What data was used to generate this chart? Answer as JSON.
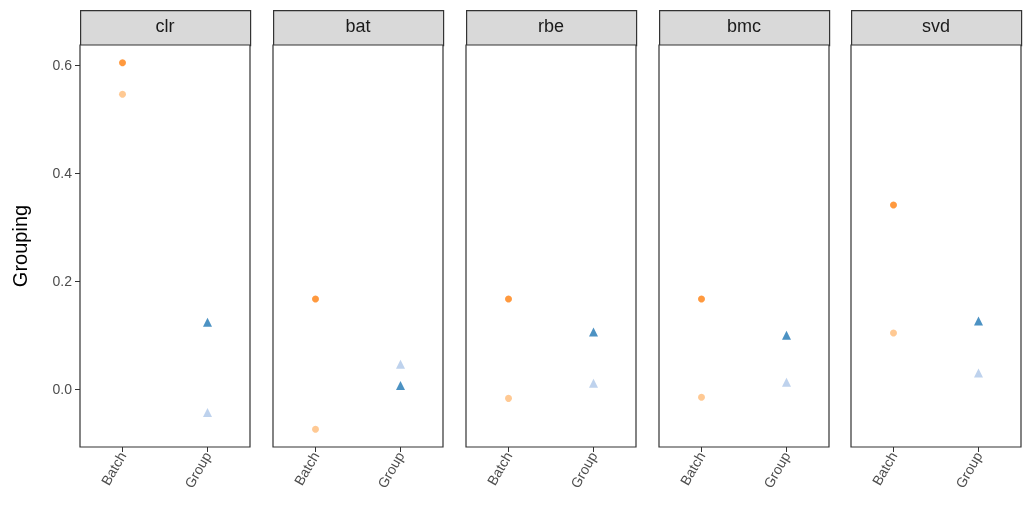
{
  "chart_data": [
    {
      "type": "scatter",
      "title": "clr",
      "ylabel": "Grouping",
      "categories": [
        "Batch",
        "Group"
      ],
      "ylim": [
        -0.107,
        0.637
      ],
      "yticks": [
        {
          "value": 0,
          "label": "0.0"
        },
        {
          "value": 0.2,
          "label": "0.2"
        },
        {
          "value": 0.4,
          "label": "0.4"
        },
        {
          "value": 0.6,
          "label": "0.6"
        }
      ],
      "grid": false,
      "series": [
        {
          "color": "#ff7f0e",
          "marker": "circle",
          "x": [
            "Batch"
          ],
          "values": [
            0.604
          ]
        },
        {
          "color": "#ffbb78",
          "marker": "circle",
          "x": [
            "Batch"
          ],
          "values": [
            0.546
          ]
        },
        {
          "color": "#1f77b4",
          "marker": "triangle",
          "x": [
            "Group"
          ],
          "values": [
            0.124
          ]
        },
        {
          "color": "#aec7e8",
          "marker": "triangle",
          "x": [
            "Group"
          ],
          "values": [
            -0.043
          ]
        }
      ]
    },
    {
      "type": "scatter",
      "title": "bat",
      "categories": [
        "Batch",
        "Group"
      ],
      "ylim": [
        -0.107,
        0.637
      ],
      "tick_labels": "x",
      "grid": false,
      "series": [
        {
          "color": "#ff7f0e",
          "marker": "circle",
          "x": [
            "Batch"
          ],
          "values": [
            0.167
          ]
        },
        {
          "color": "#ffbb78",
          "marker": "circle",
          "x": [
            "Batch"
          ],
          "values": [
            -0.074
          ]
        },
        {
          "color": "#1f77b4",
          "marker": "triangle",
          "x": [
            "Group"
          ],
          "values": [
            0.007
          ]
        },
        {
          "color": "#aec7e8",
          "marker": "triangle",
          "x": [
            "Group"
          ],
          "values": [
            0.046
          ]
        }
      ]
    },
    {
      "type": "scatter",
      "title": "rbe",
      "categories": [
        "Batch",
        "Group"
      ],
      "ylim": [
        -0.107,
        0.637
      ],
      "tick_labels": "x",
      "grid": false,
      "series": [
        {
          "color": "#ff7f0e",
          "marker": "circle",
          "x": [
            "Batch"
          ],
          "values": [
            0.167
          ]
        },
        {
          "color": "#ffbb78",
          "marker": "circle",
          "x": [
            "Batch"
          ],
          "values": [
            -0.017
          ]
        },
        {
          "color": "#1f77b4",
          "marker": "triangle",
          "x": [
            "Group"
          ],
          "values": [
            0.106
          ]
        },
        {
          "color": "#aec7e8",
          "marker": "triangle",
          "x": [
            "Group"
          ],
          "values": [
            0.011
          ]
        }
      ]
    },
    {
      "type": "scatter",
      "title": "bmc",
      "categories": [
        "Batch",
        "Group"
      ],
      "ylim": [
        -0.107,
        0.637
      ],
      "tick_labels": "x",
      "grid": false,
      "series": [
        {
          "color": "#ff7f0e",
          "marker": "circle",
          "x": [
            "Batch"
          ],
          "values": [
            0.167
          ]
        },
        {
          "color": "#ffbb78",
          "marker": "circle",
          "x": [
            "Batch"
          ],
          "values": [
            -0.015
          ]
        },
        {
          "color": "#1f77b4",
          "marker": "triangle",
          "x": [
            "Group"
          ],
          "values": [
            0.1
          ]
        },
        {
          "color": "#aec7e8",
          "marker": "triangle",
          "x": [
            "Group"
          ],
          "values": [
            0.013
          ]
        }
      ]
    },
    {
      "type": "scatter",
      "title": "svd",
      "categories": [
        "Batch",
        "Group"
      ],
      "ylim": [
        -0.107,
        0.637
      ],
      "tick_labels": "x",
      "grid": false,
      "series": [
        {
          "color": "#ff7f0e",
          "marker": "circle",
          "x": [
            "Batch"
          ],
          "values": [
            0.341
          ]
        },
        {
          "color": "#ffbb78",
          "marker": "circle",
          "x": [
            "Batch"
          ],
          "values": [
            0.104
          ]
        },
        {
          "color": "#1f77b4",
          "marker": "triangle",
          "x": [
            "Group"
          ],
          "values": [
            0.126
          ]
        },
        {
          "color": "#aec7e8",
          "marker": "triangle",
          "x": [
            "Group"
          ],
          "values": [
            0.03
          ]
        }
      ]
    }
  ]
}
